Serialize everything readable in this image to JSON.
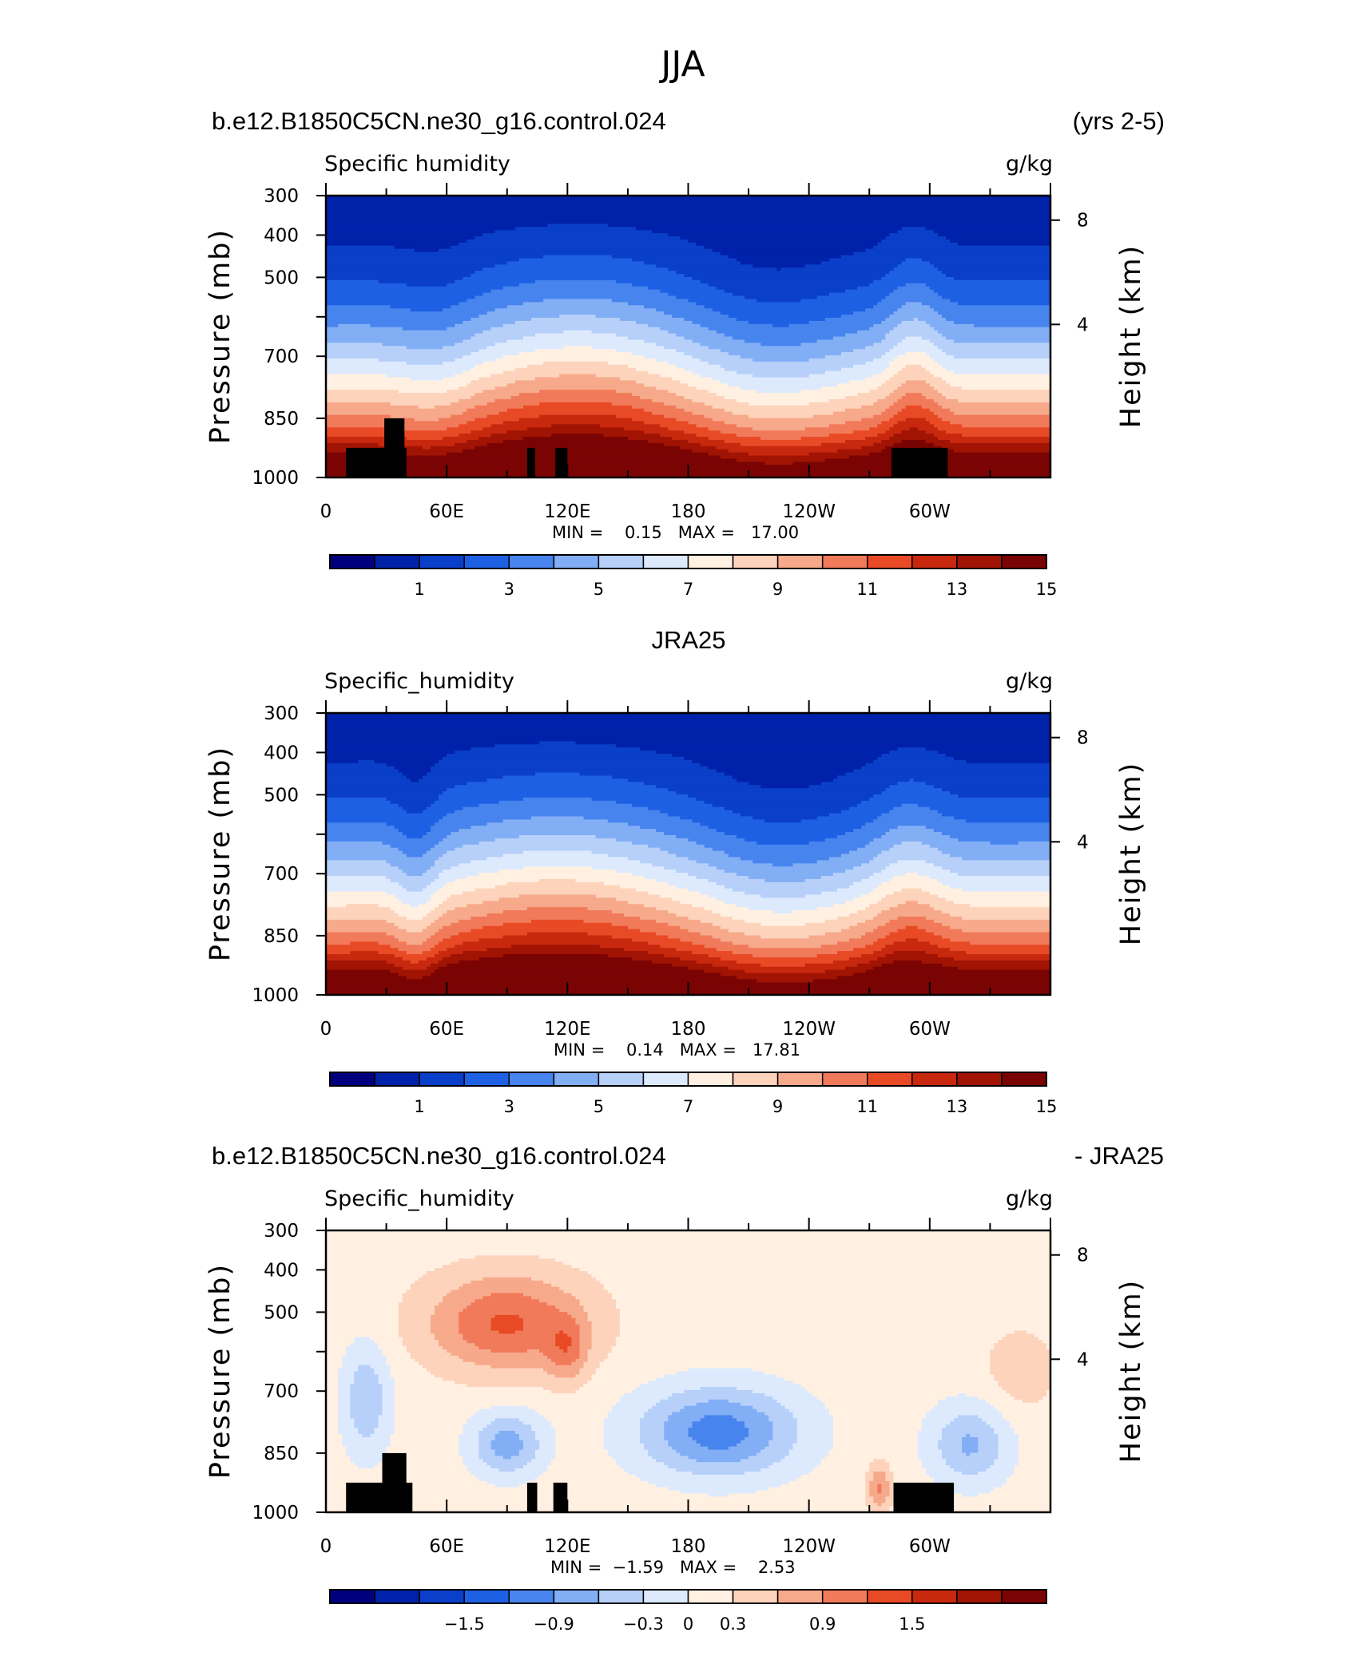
{
  "figure": {
    "title": "JJA",
    "years_label": "(yrs 2-5)"
  },
  "colors": {
    "abs_palette": [
      "#00007f",
      "#0021a9",
      "#0a3fc9",
      "#1e60e3",
      "#4784ee",
      "#82aef5",
      "#b6d0fa",
      "#ddeafd",
      "#fff0e2",
      "#fdd3bb",
      "#f7a98b",
      "#f17a5a",
      "#e84a26",
      "#c8280e",
      "#a11404",
      "#7a0403"
    ],
    "diff_palette": [
      "#00007f",
      "#0021a9",
      "#0a3fc9",
      "#1e60e3",
      "#4784ee",
      "#82aef5",
      "#b6d0fa",
      "#ddeafd",
      "#fff0e2",
      "#fdd3bb",
      "#f7a98b",
      "#f17a5a",
      "#e84a26",
      "#c8280e",
      "#a11404",
      "#7a0403"
    ],
    "topography": "#000000"
  },
  "panels": [
    {
      "heading_left": "b.e12.B1850C5CN.ne30_g16.control.024",
      "heading_right": "(yrs 2-5)",
      "variable": "Specific humidity",
      "units": "g/kg",
      "min_max": "MIN =    0.15   MAX =   17.00"
    },
    {
      "heading_center": "JRA25",
      "variable": "Specific_humidity",
      "units": "g/kg",
      "min_max": "MIN =    0.14   MAX =   17.81"
    },
    {
      "heading_left": "b.e12.B1850C5CN.ne30_g16.control.024",
      "heading_right": "- JRA25",
      "variable": "Specific_humidity",
      "units": "g/kg",
      "min_max": "MIN =  −1.59   MAX =    2.53"
    }
  ],
  "chart_data": [
    {
      "type": "heatmap",
      "subtitle": "b.e12.B1850C5CN.ne30_g16.control.024",
      "title": "Specific humidity",
      "units": "g/kg",
      "xlabel": "",
      "ylabel": "Pressure (mb)",
      "ylabel_right": "Height (km)",
      "x_tick_labels": [
        "0",
        "60E",
        "120E",
        "180",
        "120W",
        "60W"
      ],
      "x_ticks_deg": [
        0,
        60,
        120,
        180,
        240,
        300
      ],
      "xlim": [
        0,
        360
      ],
      "y_tick_labels": [
        "300",
        "400",
        "500",
        "700",
        "850",
        "1000"
      ],
      "y_ticks_mb": [
        300,
        400,
        500,
        600,
        700,
        850,
        1000
      ],
      "ylim": [
        1000,
        300
      ],
      "right_tick_labels": [
        "8",
        "4"
      ],
      "right_ticks_km": [
        8,
        4
      ],
      "min": 0.15,
      "max": 17.0,
      "contour_levels": [
        0,
        1,
        2,
        3,
        4,
        5,
        6,
        7,
        8,
        9,
        10,
        11,
        12,
        13,
        14,
        15,
        16
      ],
      "colorbar_labels": [
        "1",
        "3",
        "5",
        "7",
        "9",
        "11",
        "13",
        "15"
      ],
      "colorbar_label_values": [
        1,
        3,
        5,
        7,
        9,
        11,
        13,
        15
      ],
      "topography": [
        [
          10,
          40,
          1000
        ],
        [
          29,
          39,
          850
        ],
        [
          100,
          104,
          1000
        ],
        [
          114,
          120,
          1000
        ],
        [
          281,
          309,
          1000
        ]
      ]
    },
    {
      "type": "heatmap",
      "subtitle": "JRA25",
      "title": "Specific_humidity",
      "units": "g/kg",
      "xlabel": "",
      "ylabel": "Pressure (mb)",
      "ylabel_right": "Height (km)",
      "x_tick_labels": [
        "0",
        "60E",
        "120E",
        "180",
        "120W",
        "60W"
      ],
      "x_ticks_deg": [
        0,
        60,
        120,
        180,
        240,
        300
      ],
      "xlim": [
        0,
        360
      ],
      "y_tick_labels": [
        "300",
        "400",
        "500",
        "700",
        "850",
        "1000"
      ],
      "y_ticks_mb": [
        300,
        400,
        500,
        600,
        700,
        850,
        1000
      ],
      "ylim": [
        1000,
        300
      ],
      "right_tick_labels": [
        "8",
        "4"
      ],
      "right_ticks_km": [
        8,
        4
      ],
      "min": 0.14,
      "max": 17.81,
      "contour_levels": [
        0,
        1,
        2,
        3,
        4,
        5,
        6,
        7,
        8,
        9,
        10,
        11,
        12,
        13,
        14,
        15,
        16
      ],
      "colorbar_labels": [
        "1",
        "3",
        "5",
        "7",
        "9",
        "11",
        "13",
        "15"
      ],
      "colorbar_label_values": [
        1,
        3,
        5,
        7,
        9,
        11,
        13,
        15
      ],
      "topography": []
    },
    {
      "type": "heatmap",
      "subtitle": "b.e12.B1850C5CN.ne30_g16.control.024 - JRA25",
      "title": "Specific_humidity",
      "units": "g/kg",
      "xlabel": "",
      "ylabel": "Pressure (mb)",
      "ylabel_right": "Height (km)",
      "x_tick_labels": [
        "0",
        "60E",
        "120E",
        "180",
        "120W",
        "60W"
      ],
      "x_ticks_deg": [
        0,
        60,
        120,
        180,
        240,
        300
      ],
      "xlim": [
        0,
        360
      ],
      "y_tick_labels": [
        "300",
        "400",
        "500",
        "700",
        "850",
        "1000"
      ],
      "y_ticks_mb": [
        300,
        400,
        500,
        600,
        700,
        850,
        1000
      ],
      "ylim": [
        1000,
        300
      ],
      "right_tick_labels": [
        "8",
        "4"
      ],
      "right_ticks_km": [
        8,
        4
      ],
      "min": -1.59,
      "max": 2.53,
      "contour_levels": [
        -2.1,
        -1.8,
        -1.5,
        -1.2,
        -0.9,
        -0.6,
        -0.3,
        0,
        0.3,
        0.6,
        0.9,
        1.2,
        1.5,
        1.8,
        2.1
      ],
      "colorbar_labels": [
        "−1.5",
        "−0.9",
        "−0.3",
        "0",
        "0.3",
        "0.9",
        "1.5"
      ],
      "colorbar_label_values": [
        -1.5,
        -0.9,
        -0.3,
        0,
        0.3,
        0.9,
        1.5
      ],
      "topography": [
        [
          10,
          43,
          1000
        ],
        [
          28,
          40,
          850
        ],
        [
          100,
          105,
          1000
        ],
        [
          113,
          120,
          1000
        ],
        [
          282,
          312,
          1000
        ]
      ]
    }
  ]
}
